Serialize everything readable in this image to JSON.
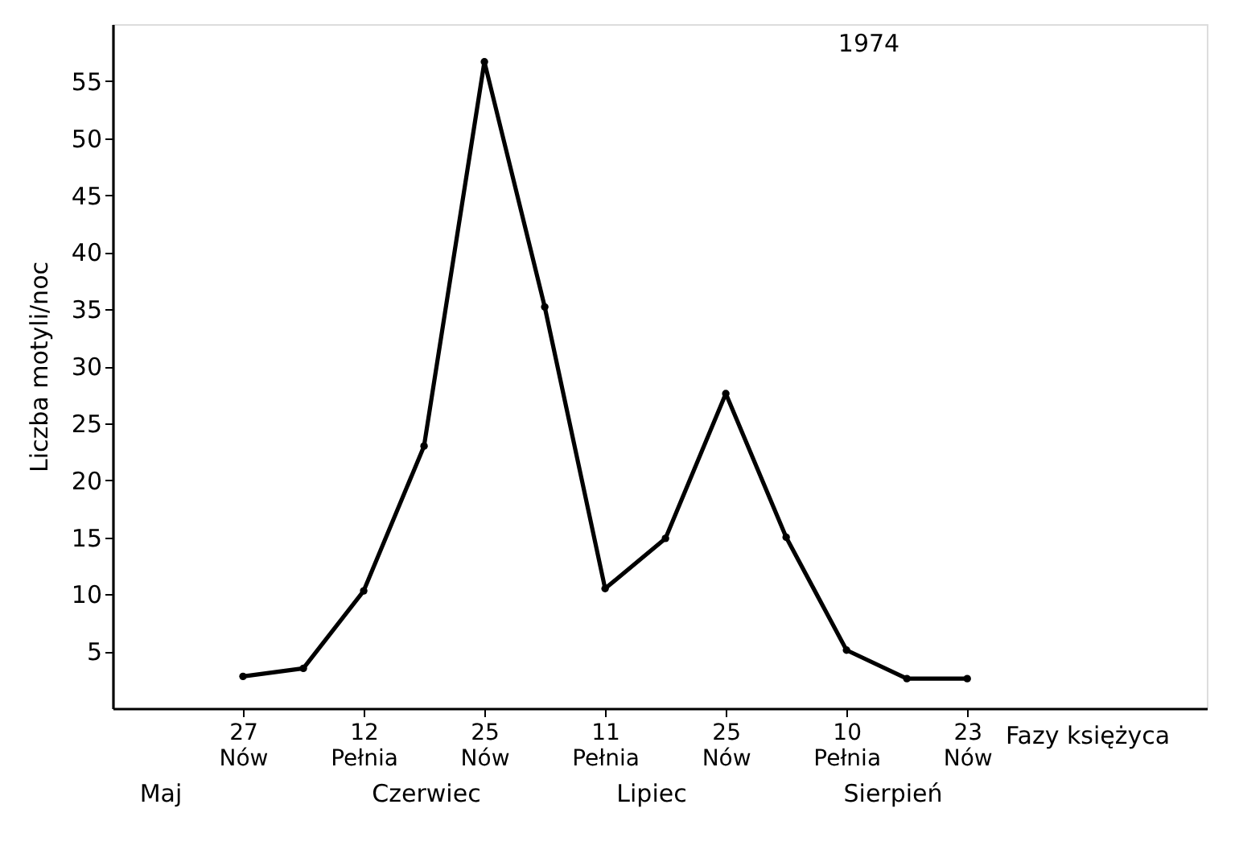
{
  "chart_data": {
    "type": "line",
    "xlabel": "Fazy księżyca",
    "ylabel": "Liczba motyli/noc",
    "categories": [
      "27\nNów",
      null,
      "12\nPełnia",
      null,
      "25\nNów",
      null,
      "11\nPełnia",
      null,
      "25\nNów",
      null,
      "10\nPełnia",
      null,
      "23\nNów"
    ],
    "series": [
      {
        "color": "#000000",
        "values": [
          2.8,
          3.5,
          10.3,
          23,
          56.7,
          35.2,
          10.5,
          14.9,
          27.6,
          15,
          5.1,
          2.6,
          2.6
        ]
      }
    ],
    "ylim": [
      0,
      60
    ],
    "yticks": [
      5,
      10,
      15,
      20,
      25,
      30,
      35,
      40,
      45,
      50,
      55
    ],
    "marker": "circle",
    "line_style": "solid",
    "grid": false,
    "annotations": [
      "1974",
      "Maj",
      "Czerwiec",
      "Lipiec",
      "Sierpień"
    ]
  }
}
